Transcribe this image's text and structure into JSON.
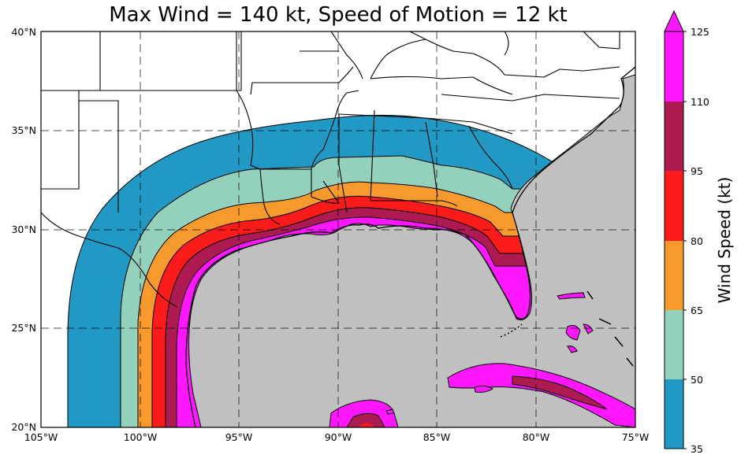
{
  "title": "Max Wind = 140 kt, Speed of Motion = 12 kt",
  "map": {
    "lon_range": [
      -105,
      -75
    ],
    "lat_range": [
      20,
      40
    ],
    "lon_ticks": [
      "105°W",
      "100°W",
      "95°W",
      "90°W",
      "85°W",
      "80°W",
      "75°W"
    ],
    "lat_ticks": [
      "20°N",
      "25°N",
      "30°N",
      "35°N",
      "40°N"
    ],
    "grid_lines": "dashed",
    "ocean_color": "#c0c0c0",
    "land_color": "#ffffff"
  },
  "colorbar": {
    "label": "Wind Speed (kt)",
    "ticks": [
      "35",
      "50",
      "65",
      "80",
      "95",
      "110",
      "125"
    ],
    "extend": "max",
    "bins": [
      {
        "range": "35-50",
        "color": "#2299c4"
      },
      {
        "range": "50-65",
        "color": "#94d1bd"
      },
      {
        "range": "65-80",
        "color": "#f79a2e"
      },
      {
        "range": "80-95",
        "color": "#fc1b1b"
      },
      {
        "range": "95-110",
        "color": "#ae1b52"
      },
      {
        "range": "110-125",
        "color": "#ff17ff"
      }
    ],
    "over_color": "#ff17ff"
  },
  "bands": [
    "35-50",
    "50-65",
    "65-80",
    "80-95",
    "95-110",
    ">110"
  ]
}
